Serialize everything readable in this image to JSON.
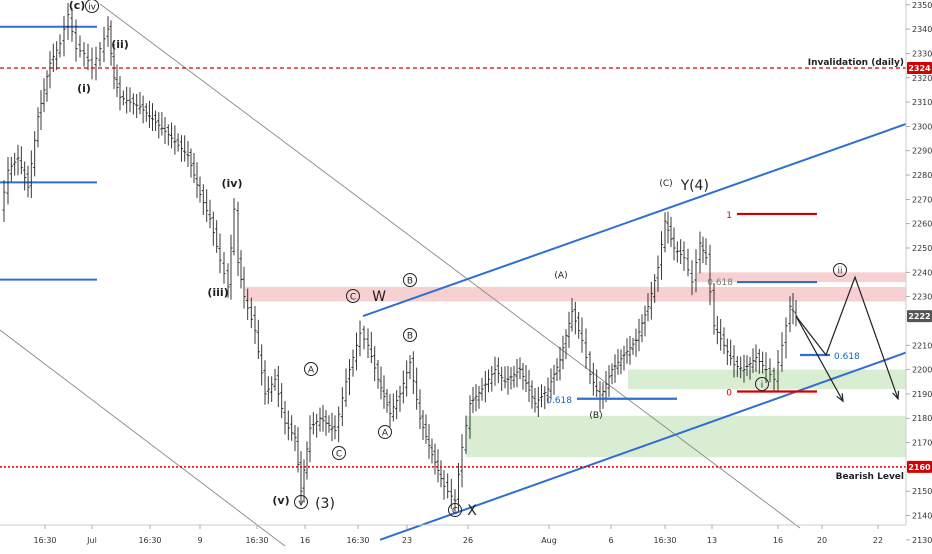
{
  "chart_data": {
    "type": "candlestick",
    "instrument_price_last": "2222",
    "yaxis": {
      "range": [
        2125,
        2352
      ],
      "ticks": [
        "2350",
        "2340",
        "2330",
        "2320",
        "2310",
        "2300",
        "2290",
        "2280",
        "2270",
        "2260",
        "2250",
        "2240",
        "2230",
        "2210",
        "2200",
        "2190",
        "2180",
        "2170",
        "2150",
        "2140",
        "2130"
      ]
    },
    "xaxis": {
      "ticks": [
        "16:30",
        "Jul",
        "16:30",
        "9",
        "16:30",
        "16",
        "16:30",
        "23",
        "26",
        "Aug",
        "6",
        "16:30",
        "13",
        "16",
        "20",
        "22"
      ]
    },
    "price_badges": [
      {
        "label": "2324",
        "value": 2324,
        "color": "#d50000"
      },
      {
        "label": "2222",
        "value": 2222,
        "color": "#555555"
      },
      {
        "label": "2160",
        "value": 2160,
        "color": "#d50000"
      }
    ],
    "reference_lines": [
      {
        "label": "Invalidation (daily)",
        "value": 2324,
        "color": "#d50000",
        "style": "dashed"
      },
      {
        "label": "Bearish Level",
        "value": 2160,
        "color": "#d50000",
        "style": "dotted"
      }
    ],
    "fib_labels": [
      {
        "text": "1",
        "color": "#d50000"
      },
      {
        "text": "0.618",
        "color": "#7a7a7a"
      },
      {
        "text": "0.618",
        "color": "#1565c0"
      },
      {
        "text": "0",
        "color": "#d50000"
      },
      {
        "text": "0.618",
        "color": "#1565c0"
      }
    ],
    "wave_labels": [
      {
        "text": "(c)",
        "circled": false,
        "bold": true
      },
      {
        "text": "iv",
        "circled": true,
        "bold": false
      },
      {
        "text": "(ii)",
        "circled": false,
        "bold": true
      },
      {
        "text": "(i)",
        "circled": false,
        "bold": true
      },
      {
        "text": "(iv)",
        "circled": false,
        "bold": true
      },
      {
        "text": "(iii)",
        "circled": false,
        "bold": true
      },
      {
        "text": "(v)",
        "circled": false,
        "bold": true
      },
      {
        "text": "v",
        "circled": true,
        "bold": false
      },
      {
        "text": "(3)",
        "circled": false,
        "bold": false
      },
      {
        "text": "C",
        "circled": true,
        "bold": false
      },
      {
        "text": "W",
        "circled": false,
        "bold": false
      },
      {
        "text": "A",
        "circled": true,
        "bold": false
      },
      {
        "text": "B",
        "circled": true,
        "bold": false
      },
      {
        "text": "C",
        "circled": true,
        "bold": false
      },
      {
        "text": "A",
        "circled": true,
        "bold": false
      },
      {
        "text": "B",
        "circled": true,
        "bold": false
      },
      {
        "text": "C",
        "circled": true,
        "bold": false
      },
      {
        "text": "X",
        "circled": false,
        "bold": false
      },
      {
        "text": "(A)",
        "circled": false,
        "bold": false
      },
      {
        "text": "(B)",
        "circled": false,
        "bold": false
      },
      {
        "text": "(C)",
        "circled": false,
        "bold": false
      },
      {
        "text": "Y",
        "circled": false,
        "bold": false
      },
      {
        "text": "(4)",
        "circled": false,
        "bold": false
      },
      {
        "text": "ii",
        "circled": true,
        "bold": false
      },
      {
        "text": "i",
        "circled": true,
        "bold": false
      }
    ],
    "colors": {
      "candle": "#222222",
      "channel": "#2f6fd1",
      "resistance_zone": "#f4c2c2",
      "support_zone": "#cfe8c8",
      "invalidation": "#d50000",
      "trendline": "#888888"
    }
  }
}
